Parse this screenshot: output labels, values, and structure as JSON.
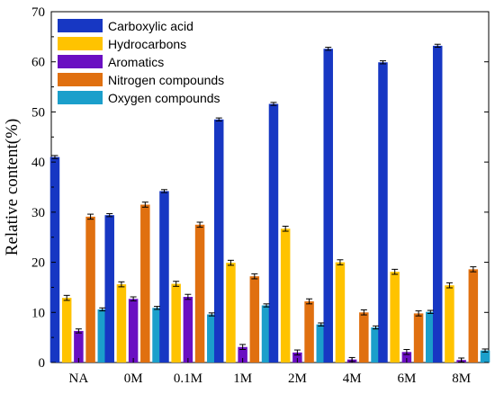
{
  "chart_data": {
    "type": "bar",
    "ylabel": "Relative content(%)",
    "xlabel": "",
    "ylim": [
      0,
      70
    ],
    "yticks": [
      0,
      10,
      20,
      30,
      40,
      50,
      60,
      70
    ],
    "legend_position": "top-left",
    "categories": [
      "NA",
      "0M",
      "0.1M",
      "1M",
      "2M",
      "4M",
      "6M",
      "8M"
    ],
    "series": [
      {
        "name": "Carboxylic acid",
        "color": "#1737c3",
        "values": [
          41.0,
          29.4,
          34.2,
          48.5,
          51.6,
          62.6,
          59.9,
          63.2
        ],
        "errors": [
          0.3,
          0.3,
          0.3,
          0.3,
          0.3,
          0.3,
          0.3,
          0.3
        ]
      },
      {
        "name": "Hydrocarbons",
        "color": "#ffc300",
        "values": [
          12.9,
          15.6,
          15.7,
          19.9,
          26.7,
          20.0,
          18.1,
          15.4
        ],
        "errors": [
          0.5,
          0.5,
          0.5,
          0.5,
          0.5,
          0.5,
          0.5,
          0.5
        ]
      },
      {
        "name": "Aromatics",
        "color": "#6a0fc2",
        "values": [
          6.3,
          12.7,
          13.1,
          3.1,
          2.0,
          0.6,
          2.1,
          0.5
        ],
        "errors": [
          0.4,
          0.4,
          0.5,
          0.5,
          0.5,
          0.4,
          0.5,
          0.4
        ]
      },
      {
        "name": "Nitrogen compounds",
        "color": "#e07010",
        "values": [
          29.1,
          31.5,
          27.5,
          17.2,
          12.2,
          10.0,
          9.8,
          18.6
        ],
        "errors": [
          0.5,
          0.5,
          0.5,
          0.5,
          0.5,
          0.5,
          0.5,
          0.5
        ]
      },
      {
        "name": "Oxygen compounds",
        "color": "#1b9fcb",
        "values": [
          10.6,
          10.9,
          9.6,
          11.4,
          7.6,
          7.0,
          10.1,
          2.4
        ],
        "errors": [
          0.3,
          0.3,
          0.3,
          0.3,
          0.3,
          0.3,
          0.3,
          0.3
        ]
      }
    ]
  }
}
